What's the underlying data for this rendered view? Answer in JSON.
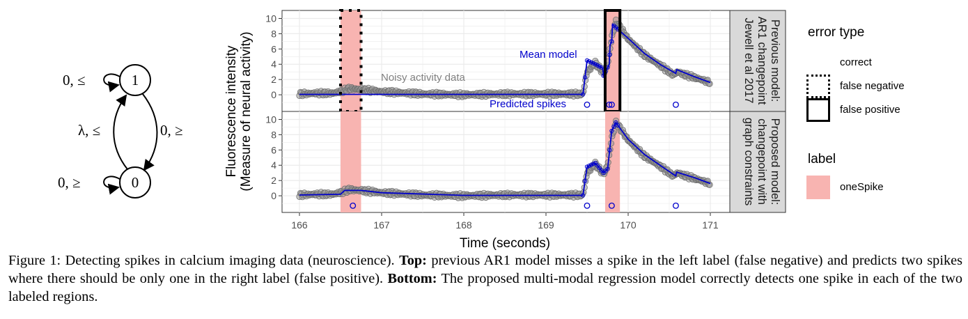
{
  "diagram": {
    "state_top": "1",
    "state_bottom": "0",
    "loop_top": "0, ≤",
    "loop_bottom": "0, ≥",
    "edge_up": "λ, ≤",
    "edge_down": "0, ≥"
  },
  "chart_data": {
    "type": "line",
    "xlabel": "Time (seconds)",
    "ylabel": "Fluorescence intensity",
    "ylabel2": "(Measure of neural activity)",
    "xlim": [
      166,
      171
    ],
    "ylim": [
      -2,
      10.5
    ],
    "xticks": [
      166,
      167,
      168,
      169,
      170,
      171
    ],
    "yticks": [
      0,
      2,
      4,
      6,
      8,
      10
    ],
    "grid": true,
    "legend_placement": "right",
    "labels": [
      {
        "start": 166.5,
        "end": 166.75,
        "label": "oneSpike"
      },
      {
        "start": 169.72,
        "end": 169.9,
        "label": "oneSpike"
      }
    ],
    "panels": [
      {
        "strip": [
          "Previous model:",
          "AR1 changepoint",
          "Jewell et al 2017"
        ],
        "errors": [
          {
            "start": 166.5,
            "end": 166.75,
            "type": "false negative"
          },
          {
            "start": 169.72,
            "end": 169.9,
            "type": "false positive"
          }
        ],
        "predicted_spikes": [
          169.5,
          169.77,
          169.8,
          170.58
        ],
        "annotations": {
          "noisy": "Noisy activity data",
          "mean": "Mean model",
          "spikes": "Predicted spikes"
        },
        "data": {
          "x": [
            166.0,
            166.2,
            166.4,
            166.5,
            166.6,
            166.75,
            167.0,
            167.5,
            168.0,
            168.5,
            169.0,
            169.45,
            169.5,
            169.6,
            169.7,
            169.75,
            169.8,
            169.85,
            169.9,
            170.0,
            170.2,
            170.4,
            170.55,
            170.6,
            170.7,
            170.8,
            171.0
          ],
          "y": [
            0.1,
            0.2,
            0.2,
            0.4,
            0.8,
            0.7,
            0.4,
            0.1,
            0.0,
            0.1,
            0.1,
            0.1,
            3.0,
            4.2,
            2.8,
            4.0,
            7.5,
            9.6,
            8.9,
            7.3,
            5.2,
            3.8,
            2.6,
            3.0,
            2.6,
            2.3,
            1.6
          ]
        },
        "mean": {
          "x": [
            166.0,
            169.45,
            169.5,
            169.6,
            169.69,
            169.7,
            169.77,
            169.78,
            169.8,
            169.81,
            170.0,
            170.2,
            170.4,
            170.58,
            170.59,
            170.8,
            171.0
          ],
          "y": [
            0.05,
            0.05,
            4.5,
            4.0,
            3.5,
            2.5,
            4.0,
            6.5,
            7.0,
            9.2,
            7.4,
            5.4,
            3.9,
            2.8,
            3.3,
            2.4,
            1.6
          ]
        }
      },
      {
        "strip": [
          "Proposed model:",
          "changepoint with",
          "graph constraints"
        ],
        "errors": [],
        "predicted_spikes": [
          166.65,
          169.5,
          169.8,
          170.58
        ],
        "data": {
          "x": [
            166.0,
            166.2,
            166.4,
            166.5,
            166.6,
            166.75,
            167.0,
            167.5,
            168.0,
            168.5,
            169.0,
            169.45,
            169.5,
            169.6,
            169.7,
            169.75,
            169.8,
            169.85,
            169.9,
            170.0,
            170.2,
            170.4,
            170.55,
            170.6,
            170.7,
            170.8,
            171.0
          ],
          "y": [
            0.1,
            0.2,
            0.2,
            0.4,
            0.8,
            0.7,
            0.4,
            0.1,
            0.0,
            0.1,
            0.1,
            0.1,
            3.0,
            4.2,
            2.8,
            4.0,
            7.5,
            9.6,
            8.9,
            7.3,
            5.2,
            3.8,
            2.6,
            3.0,
            2.6,
            2.3,
            1.6
          ]
        },
        "mean": {
          "x": [
            166.0,
            166.5,
            166.55,
            166.75,
            167.0,
            168.0,
            169.45,
            169.5,
            169.6,
            169.7,
            169.75,
            169.8,
            169.85,
            170.0,
            170.2,
            170.4,
            170.58,
            170.59,
            170.8,
            171.0
          ],
          "y": [
            0.1,
            0.2,
            0.7,
            0.7,
            0.4,
            0.05,
            0.05,
            3.8,
            4.3,
            3.0,
            3.5,
            8.5,
            9.6,
            7.4,
            5.4,
            3.9,
            2.6,
            3.1,
            2.4,
            1.6
          ]
        }
      }
    ]
  },
  "legend": {
    "error_title": "error type",
    "error_items": [
      "correct",
      "false negative",
      "false positive"
    ],
    "label_title": "label",
    "label_items": [
      "oneSpike"
    ]
  },
  "colors": {
    "label_fill": "#f8b4b1",
    "data": "#808080",
    "model": "#0000cc",
    "grid": "#ebebeb",
    "strip": "#d9d9d9"
  },
  "caption": {
    "prefix": "Figure 1: Detecting spikes in calcium imaging data (neuroscience). ",
    "top_bold": "Top:",
    "top_text": " previous AR1 model misses a spike in the left label (false negative) and predicts two spikes where there should be only one in the right label (false positive). ",
    "bottom_bold": "Bottom:",
    "bottom_text": " The proposed multi-modal regression model correctly detects one spike in each of the two labeled regions."
  }
}
